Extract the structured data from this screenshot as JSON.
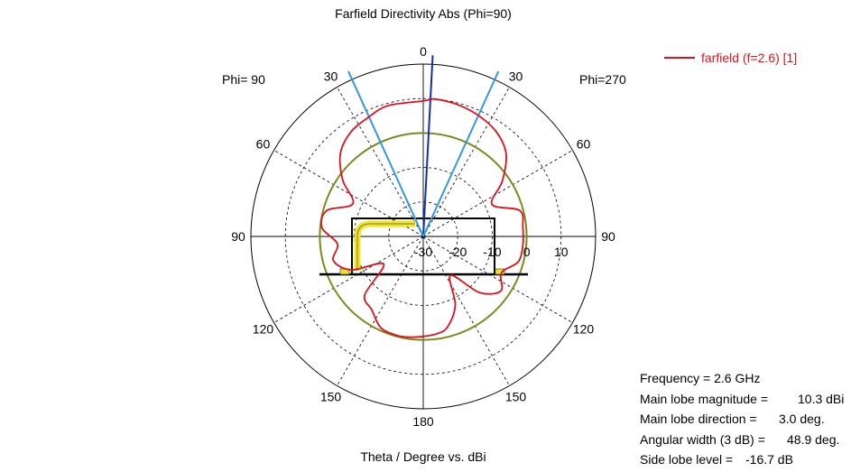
{
  "chart_data": {
    "type": "polar",
    "title": "Farfield Directivity Abs (Phi=90)",
    "xlabel": "Theta / Degree vs. dBi",
    "left_label": "Phi= 90",
    "right_label": "Phi=270",
    "angle_labels": [
      "0",
      "30",
      "60",
      "90",
      "120",
      "150",
      "180",
      "150",
      "120",
      "90",
      "60",
      "30"
    ],
    "radial_labels": [
      "-30",
      "-20",
      "-10",
      "0",
      "10"
    ],
    "radial_range_dbi": [
      -30,
      20
    ],
    "series": [
      {
        "name": "farfield (f=2.6) [1]",
        "color": "#e0101a",
        "theta_deg": [
          0,
          15,
          25,
          35,
          45,
          55,
          65,
          75,
          85,
          95,
          105,
          115,
          125,
          135,
          145,
          155,
          165,
          172,
          180,
          188,
          195,
          205,
          215,
          225,
          235,
          245,
          255,
          265,
          275,
          285,
          295,
          305,
          315,
          325,
          335,
          345,
          355
        ],
        "values_dbi": [
          9.3,
          9.3,
          8.0,
          6.8,
          4.0,
          -1.5,
          -7.5,
          -1.0,
          -0.5,
          -5.0,
          -3.0,
          -7.0,
          -16.0,
          -6.0,
          -4.0,
          -0.8,
          -0.3,
          -0.5,
          -1.0,
          -1.5,
          -2.8,
          -8.0,
          -16.2,
          -7.0,
          -2.5,
          -5.0,
          -1.5,
          -1.0,
          -1.0,
          -1.0,
          -8.0,
          -2.0,
          4.0,
          7.0,
          8.5,
          9.5,
          10.0
        ]
      }
    ],
    "main_lobe_direction_deg": 3.0,
    "beam_edge_deg": [
      -24.5,
      24.4
    ]
  },
  "stats": [
    {
      "label": "Frequency = 2.6 GHz",
      "value": ""
    },
    {
      "label": "Main lobe magnitude =",
      "value": "10.3 dBi"
    },
    {
      "label": "Main lobe direction =",
      "value": "3.0 deg."
    },
    {
      "label": "Angular width (3 dB) =",
      "value": "48.9 deg."
    },
    {
      "label": "Side lobe level =",
      "value": "-16.7 dB"
    }
  ],
  "colors": {
    "trace": "#e0101a",
    "main_lobe": "#1030b0",
    "beamwidth": "#3399dd",
    "reference": "#7a8a1a",
    "antenna": "#f2e51c"
  }
}
